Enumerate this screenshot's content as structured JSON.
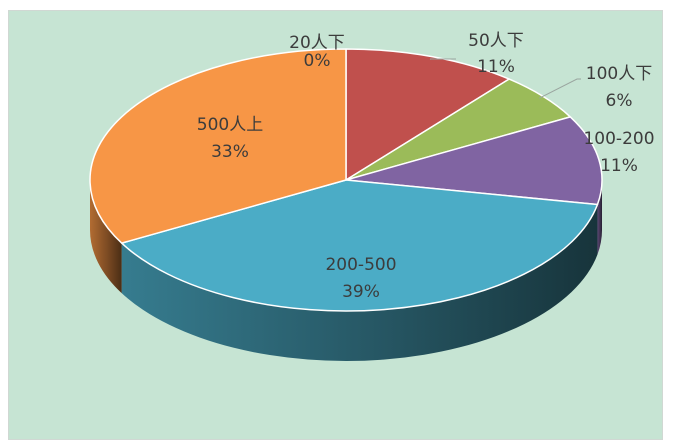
{
  "chart_data": {
    "type": "pie",
    "style": "3d",
    "slices": [
      {
        "label": "20人下",
        "percent_label": "0%",
        "value": 0,
        "color": "#4a7fbf"
      },
      {
        "label": "50人下",
        "percent_label": "11%",
        "value": 11,
        "color": "#c0504d"
      },
      {
        "label": "100人下",
        "percent_label": "6%",
        "value": 6,
        "color": "#9bbb59"
      },
      {
        "label": "100-200",
        "percent_label": "11%",
        "value": 11,
        "color": "#8064a2"
      },
      {
        "label": "200-500",
        "percent_label": "39%",
        "value": 39,
        "color": "#4bacc6"
      },
      {
        "label": "500人上",
        "percent_label": "33%",
        "value": 33,
        "color": "#f79646"
      }
    ],
    "background_color": "#c6e4d3"
  }
}
